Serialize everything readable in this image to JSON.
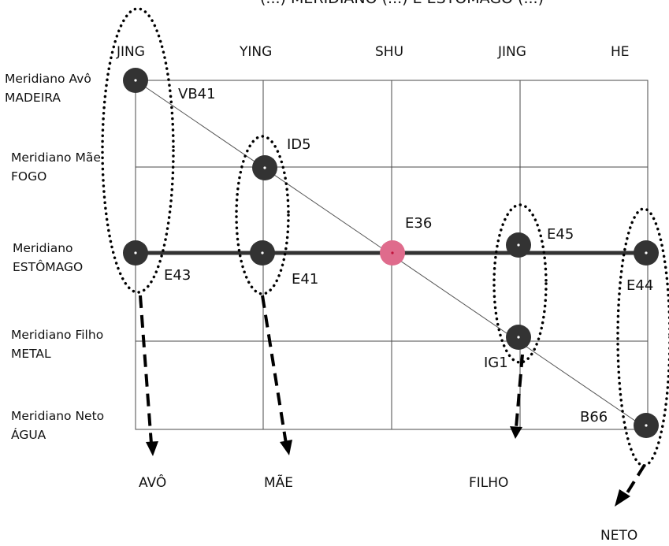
{
  "title_fragment": "(...) MERIDIANO (...) E ESTÔMAGO (...)",
  "columns": [
    "JING",
    "YING",
    "SHU",
    "JING",
    "HE"
  ],
  "rows": [
    {
      "name": "Meridiano Avô",
      "element": "MADEIRA"
    },
    {
      "name": "Meridiano Mãe",
      "element": "FOGO"
    },
    {
      "name": "Meridiano",
      "element": "ESTÔMAGO"
    },
    {
      "name": "Meridiano Filho",
      "element": "METAL"
    },
    {
      "name": "Meridiano Neto",
      "element": "ÁGUA"
    }
  ],
  "points": [
    {
      "code": "VB41",
      "type": "normal"
    },
    {
      "code": "ID5",
      "type": "normal"
    },
    {
      "code": "E43",
      "type": "normal"
    },
    {
      "code": "E41",
      "type": "normal"
    },
    {
      "code": "E36",
      "type": "highlight"
    },
    {
      "code": "E45",
      "type": "normal"
    },
    {
      "code": "E44",
      "type": "normal"
    },
    {
      "code": "IG1",
      "type": "normal"
    },
    {
      "code": "B66",
      "type": "normal"
    }
  ],
  "outcomes": [
    "AVÔ",
    "MÃE",
    "FILHO",
    "NETO"
  ],
  "colors": {
    "dot": "#333333",
    "highlight": "#df6b8c",
    "grid": "#4a4a4a",
    "line": "#333333"
  }
}
